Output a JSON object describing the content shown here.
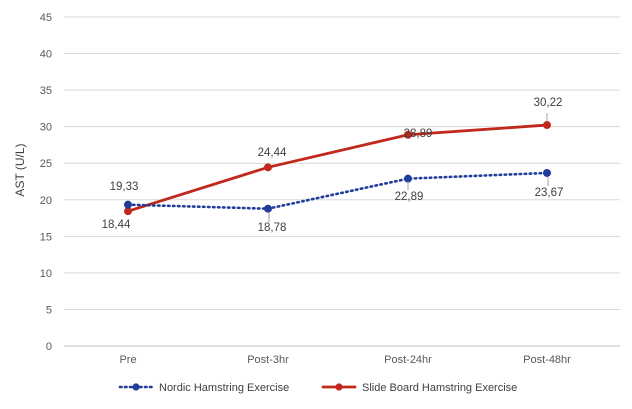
{
  "chart_data": {
    "type": "line",
    "ylabel": "AST (U/L)",
    "xlabel": "",
    "categories": [
      "Pre",
      "Post-3hr",
      "Post-24hr",
      "Post-48hr"
    ],
    "ylim": [
      0,
      45
    ],
    "yticks": [
      "0",
      "5",
      "10",
      "15",
      "20",
      "25",
      "30",
      "35",
      "40",
      "45"
    ],
    "grid": true,
    "legend_position": "bottom",
    "series": [
      {
        "name": "Nordic Hamstring Exercise",
        "values": [
          19.33,
          18.78,
          22.89,
          23.67
        ],
        "labels": [
          "19,33",
          "18,78",
          "22,89",
          "23,67"
        ],
        "color": "#1f3d99",
        "line_style": "dotted"
      },
      {
        "name": "Slide Board Hamstring Exercise",
        "values": [
          18.44,
          24.44,
          28.89,
          30.22
        ],
        "labels": [
          "18,44",
          "24,44",
          "28,89",
          "30,22"
        ],
        "color": "#c0281c",
        "line_style": "solid"
      }
    ]
  }
}
